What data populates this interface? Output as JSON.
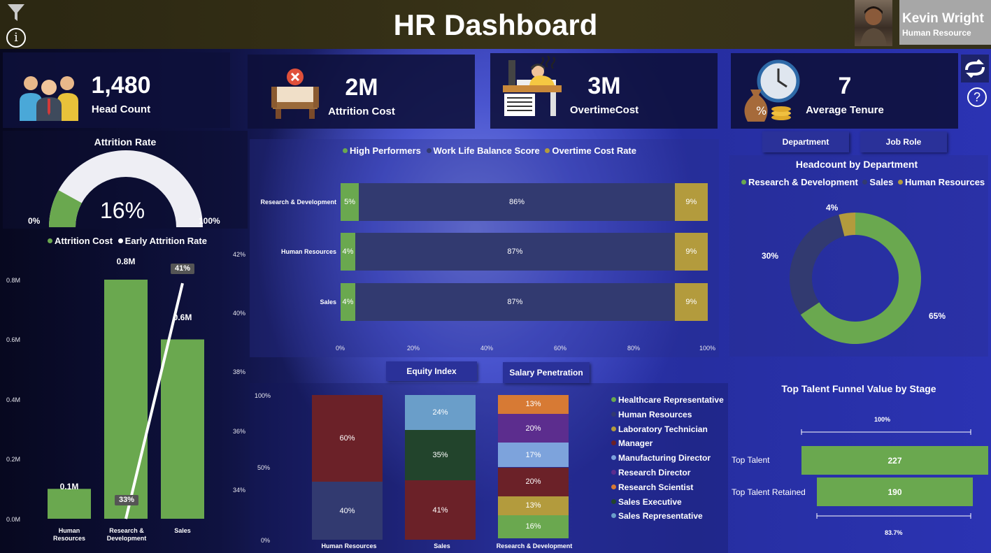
{
  "header": {
    "title": "HR Dashboard",
    "user_name": "Kevin Wright",
    "user_role": "Human Resource"
  },
  "kpis": [
    {
      "value": "1,480",
      "label": "Head Count",
      "icon": "people-icon"
    },
    {
      "value": "2M",
      "label": "Attrition Cost",
      "icon": "empty-desk-icon"
    },
    {
      "value": "3M",
      "label": "OvertimeCost",
      "icon": "tired-worker-icon"
    },
    {
      "value": "7",
      "label": "Average Tenure",
      "icon": "money-clock-icon"
    }
  ],
  "buttons": {
    "department": "Department",
    "job_role": "Job Role",
    "equity": "Equity Index",
    "salary": "Salary Penetration"
  },
  "gauge": {
    "title": "Attrition Rate",
    "value": "16%",
    "min": "0%",
    "max": "100%",
    "fraction": 0.16,
    "fill_color": "#6aa84f",
    "track_color": "#eeeef4"
  },
  "combo": {
    "legend": [
      "Attrition Cost",
      "Early Attrition Rate"
    ],
    "yleft": [
      "0.8M",
      "0.6M",
      "0.4M",
      "0.2M",
      "0.0M"
    ],
    "yright": [
      "42%",
      "40%",
      "38%",
      "36%",
      "34%"
    ],
    "categories": [
      [
        "Human",
        "Resources"
      ],
      [
        "Research &",
        "Development"
      ],
      [
        "Sales"
      ]
    ],
    "bar_labels": [
      "0.1M",
      "0.8M",
      "0.6M"
    ],
    "line_labels": [
      "33%",
      "41%"
    ]
  },
  "stacked_bar": {
    "legend": [
      "High Performers",
      "Work Life Balance Score",
      "Overtime Cost Rate"
    ],
    "rows": [
      {
        "label": "Research & Development",
        "vals": [
          "5%",
          "86%",
          "9%"
        ]
      },
      {
        "label": "Human Resources",
        "vals": [
          "4%",
          "87%",
          "9%"
        ]
      },
      {
        "label": "Sales",
        "vals": [
          "4%",
          "87%",
          "9%"
        ]
      }
    ],
    "xticks": [
      "0%",
      "20%",
      "40%",
      "60%",
      "80%",
      "100%"
    ]
  },
  "donut": {
    "title": "Headcount by Department",
    "legend": [
      "Research & Development",
      "Sales",
      "Human Resources"
    ],
    "labels": [
      "65%",
      "30%",
      "4%"
    ]
  },
  "column100": {
    "yticks": [
      "100%",
      "50%",
      "0%"
    ],
    "columns": [
      {
        "label": "Human Resources",
        "segs": [
          "60%",
          "40%"
        ]
      },
      {
        "label": "Sales",
        "segs": [
          "24%",
          "35%",
          "41%"
        ]
      },
      {
        "label": "Research & Development",
        "segs": [
          "13%",
          "20%",
          "17%",
          "20%",
          "13%",
          "16%"
        ]
      }
    ],
    "legend": [
      "Healthcare Representative",
      "Human Resources",
      "Laboratory Technician",
      "Manager",
      "Manufacturing Director",
      "Research Director",
      "Research Scientist",
      "Sales Executive",
      "Sales Representative"
    ]
  },
  "funnel": {
    "title": "Top Talent Funnel Value by Stage",
    "top_pct": "100%",
    "bottom_pct": "83.7%",
    "stages": [
      {
        "label": "Top Talent",
        "value": "227"
      },
      {
        "label": "Top Talent Retained",
        "value": "190"
      }
    ]
  },
  "chart_data": [
    {
      "type": "bar",
      "title": "Attrition Rate",
      "values": [
        16
      ],
      "ylim": [
        0,
        100
      ]
    },
    {
      "type": "bar",
      "categories": [
        "Human Resources",
        "Research & Development",
        "Sales"
      ],
      "series": [
        {
          "name": "Attrition Cost",
          "values": [
            0.1,
            0.8,
            0.6
          ]
        },
        {
          "name": "Early Attrition Rate",
          "values": [
            null,
            33,
            41
          ]
        }
      ],
      "ylim": [
        0,
        0.85
      ],
      "y2lim": [
        33,
        42.5
      ]
    },
    {
      "type": "bar",
      "categories": [
        "Research & Development",
        "Human Resources",
        "Sales"
      ],
      "series": [
        {
          "name": "High Performers",
          "values": [
            5,
            4,
            4
          ]
        },
        {
          "name": "Work Life Balance Score",
          "values": [
            86,
            87,
            87
          ]
        },
        {
          "name": "Overtime Cost Rate",
          "values": [
            9,
            9,
            9
          ]
        }
      ],
      "xlim": [
        0,
        100
      ]
    },
    {
      "type": "pie",
      "title": "Headcount by Department",
      "categories": [
        "Research & Development",
        "Sales",
        "Human Resources"
      ],
      "values": [
        65,
        30,
        4
      ]
    },
    {
      "type": "bar",
      "categories": [
        "Human Resources",
        "Sales",
        "Research & Development"
      ],
      "ylim": [
        0,
        100
      ],
      "series": [
        {
          "name": "Healthcare Representative",
          "values": [
            0,
            0,
            16
          ]
        },
        {
          "name": "Human Resources",
          "values": [
            40,
            0,
            0
          ]
        },
        {
          "name": "Laboratory Technician",
          "values": [
            0,
            0,
            13
          ]
        },
        {
          "name": "Manager",
          "values": [
            60,
            41,
            20
          ]
        },
        {
          "name": "Manufacturing Director",
          "values": [
            0,
            0,
            17
          ]
        },
        {
          "name": "Research Director",
          "values": [
            0,
            0,
            20
          ]
        },
        {
          "name": "Research Scientist",
          "values": [
            0,
            0,
            13
          ]
        },
        {
          "name": "Sales Executive",
          "values": [
            0,
            35,
            0
          ]
        },
        {
          "name": "Sales Representative",
          "values": [
            0,
            24,
            0
          ]
        }
      ]
    },
    {
      "type": "bar",
      "title": "Top Talent Funnel Value by Stage",
      "categories": [
        "Top Talent",
        "Top Talent Retained"
      ],
      "values": [
        227,
        190
      ]
    }
  ],
  "colors": {
    "green": "#6aa84f",
    "navy": "#323a70",
    "gold": "#b39b3d",
    "maroon": "#6b2128",
    "skyblue": "#6a9ec9",
    "darkgreen": "#22442c",
    "orange": "#d77a34",
    "purple": "#5c2d8e",
    "lightblue": "#7da3dc"
  }
}
